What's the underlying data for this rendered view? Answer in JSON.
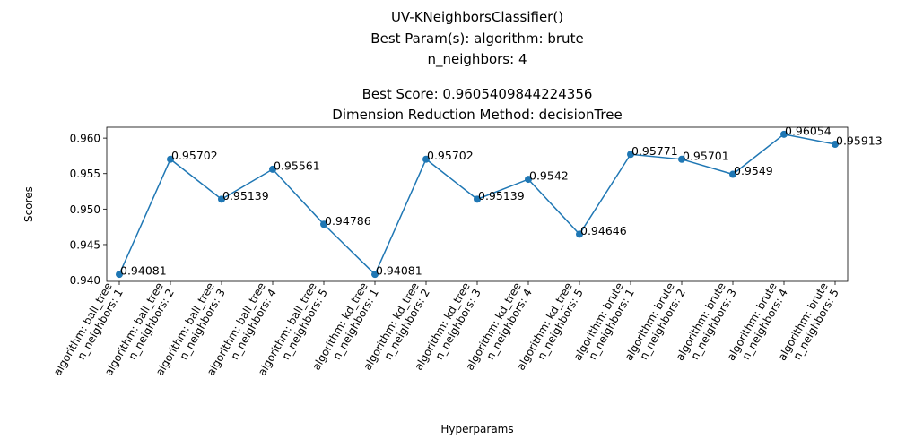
{
  "chart_data": {
    "type": "line",
    "title_lines": [
      "UV-KNeighborsClassifier()",
      "Best Param(s): algorithm: brute",
      "n_neighbors: 4",
      "",
      "Best Score: 0.9605409844224356",
      "Dimension Reduction Method: decisionTree"
    ],
    "xlabel": "Hyperparams",
    "ylabel": "Scores",
    "categories": [
      [
        "algorithm: ball_tree",
        "n_neighbors: 1"
      ],
      [
        "algorithm: ball_tree",
        "n_neighbors: 2"
      ],
      [
        "algorithm: ball_tree",
        "n_neighbors: 3"
      ],
      [
        "algorithm: ball_tree",
        "n_neighbors: 4"
      ],
      [
        "algorithm: ball_tree",
        "n_neighbors: 5"
      ],
      [
        "algorithm: kd_tree",
        "n_neighbors: 1"
      ],
      [
        "algorithm: kd_tree",
        "n_neighbors: 2"
      ],
      [
        "algorithm: kd_tree",
        "n_neighbors: 3"
      ],
      [
        "algorithm: kd_tree",
        "n_neighbors: 4"
      ],
      [
        "algorithm: kd_tree",
        "n_neighbors: 5"
      ],
      [
        "algorithm: brute",
        "n_neighbors: 1"
      ],
      [
        "algorithm: brute",
        "n_neighbors: 2"
      ],
      [
        "algorithm: brute",
        "n_neighbors: 3"
      ],
      [
        "algorithm: brute",
        "n_neighbors: 4"
      ],
      [
        "algorithm: brute",
        "n_neighbors: 5"
      ]
    ],
    "values": [
      0.94081,
      0.95702,
      0.95139,
      0.95561,
      0.94786,
      0.94081,
      0.95702,
      0.95139,
      0.9542,
      0.94646,
      0.95771,
      0.95701,
      0.9549,
      0.96054,
      0.95913
    ],
    "data_labels": [
      "0.94081",
      "0.95702",
      "0.95139",
      "0.95561",
      "0.94786",
      "0.94081",
      "0.95702",
      "0.95139",
      "0.9542",
      "0.94646",
      "0.95771",
      "0.95701",
      "0.9549",
      "0.96054",
      "0.95913"
    ],
    "yticks": [
      0.94,
      0.945,
      0.95,
      0.955,
      0.96
    ],
    "ytick_labels": [
      "0.940",
      "0.945",
      "0.950",
      "0.955",
      "0.960"
    ],
    "ylim": [
      0.93982,
      0.96153
    ],
    "grid": false,
    "line_color": "#1f77b4",
    "marker_color": "#1f77b4"
  }
}
